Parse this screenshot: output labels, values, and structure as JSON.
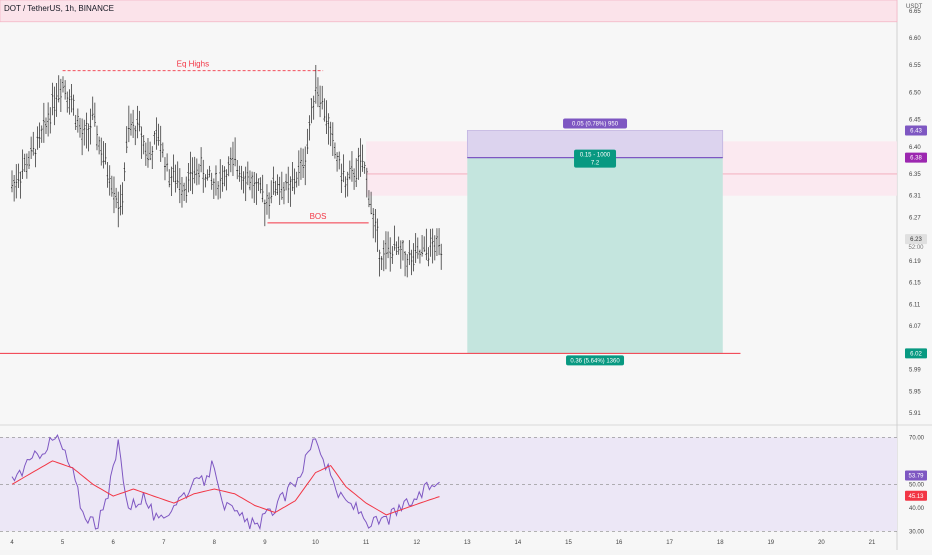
{
  "header": {
    "symbol": "DOT / TetherUS, 1h, BINANCE",
    "currency": "USDT"
  },
  "annotations": {
    "eq_highs": "Eq Highs",
    "bos": "BOS",
    "target_label": "0.05 (0.78%) 950",
    "entry_label_line1": "0.15 - 1000",
    "entry_label_line2": "7.2",
    "stop_label": "0.36 (5.64%) 1360"
  },
  "price_badges": [
    {
      "value": "6.43",
      "color": "#7e57c2"
    },
    {
      "value": "6.38",
      "color": "#9c27b0"
    },
    {
      "value": "6.23",
      "color": "#e0e0e0",
      "text_color": "#333333"
    },
    {
      "value": "6.02",
      "color": "#089981"
    }
  ],
  "rsi_badges": [
    {
      "value": "53.79",
      "color": "#7e57c2"
    },
    {
      "value": "45.13",
      "color": "#f23645"
    }
  ],
  "countdown": "52:00",
  "colors": {
    "price": "#222222",
    "rsi": "#7e57c2",
    "rsi_ma": "#f23645",
    "level": "#f23645"
  },
  "chart_data": {
    "type": "candlestick",
    "x_ticks": [
      "4",
      "5",
      "6",
      "7",
      "8",
      "9",
      "10",
      "11",
      "12",
      "13",
      "14",
      "15",
      "16",
      "17",
      "18",
      "19",
      "20",
      "21"
    ],
    "price_ticks": [
      "6.65",
      "6.60",
      "6.55",
      "6.50",
      "6.45",
      "6.40",
      "6.35",
      "6.31",
      "6.27",
      "6.19",
      "6.15",
      "6.11",
      "6.07",
      "5.99",
      "5.95",
      "5.91"
    ],
    "price_ylim": [
      5.89,
      6.67
    ],
    "rsi_ticks": [
      "70.00",
      "50.00",
      "40.00",
      "30.00"
    ],
    "rsi_ylim": [
      28,
      74
    ],
    "price_path": [
      [
        4.0,
        6.33
      ],
      [
        4.3,
        6.37
      ],
      [
        4.6,
        6.42
      ],
      [
        4.8,
        6.48
      ],
      [
        5.0,
        6.52
      ],
      [
        5.2,
        6.48
      ],
      [
        5.4,
        6.41
      ],
      [
        5.6,
        6.45
      ],
      [
        5.8,
        6.38
      ],
      [
        6.0,
        6.33
      ],
      [
        6.15,
        6.28
      ],
      [
        6.3,
        6.43
      ],
      [
        6.5,
        6.44
      ],
      [
        6.7,
        6.38
      ],
      [
        6.9,
        6.42
      ],
      [
        7.1,
        6.35
      ],
      [
        7.4,
        6.33
      ],
      [
        7.7,
        6.36
      ],
      [
        8.0,
        6.33
      ],
      [
        8.2,
        6.35
      ],
      [
        8.4,
        6.37
      ],
      [
        8.7,
        6.34
      ],
      [
        9.0,
        6.3
      ],
      [
        9.2,
        6.33
      ],
      [
        9.5,
        6.32
      ],
      [
        9.8,
        6.38
      ],
      [
        10.0,
        6.52
      ],
      [
        10.2,
        6.46
      ],
      [
        10.35,
        6.4
      ],
      [
        10.6,
        6.33
      ],
      [
        10.9,
        6.37
      ],
      [
        11.0,
        6.35
      ],
      [
        11.15,
        6.26
      ],
      [
        11.3,
        6.2
      ],
      [
        11.6,
        6.21
      ],
      [
        11.9,
        6.19
      ],
      [
        12.2,
        6.21
      ],
      [
        12.5,
        6.22
      ]
    ],
    "rsi_path": [
      [
        4.0,
        52
      ],
      [
        4.3,
        58
      ],
      [
        4.6,
        65
      ],
      [
        4.9,
        70
      ],
      [
        5.2,
        55
      ],
      [
        5.4,
        38
      ],
      [
        5.7,
        33
      ],
      [
        5.9,
        45
      ],
      [
        6.1,
        68
      ],
      [
        6.3,
        40
      ],
      [
        6.6,
        45
      ],
      [
        6.9,
        33
      ],
      [
        7.2,
        42
      ],
      [
        7.5,
        48
      ],
      [
        7.8,
        52
      ],
      [
        8.0,
        59
      ],
      [
        8.2,
        41
      ],
      [
        8.5,
        36
      ],
      [
        8.8,
        32
      ],
      [
        9.1,
        38
      ],
      [
        9.4,
        45
      ],
      [
        9.7,
        55
      ],
      [
        10.0,
        71
      ],
      [
        10.2,
        58
      ],
      [
        10.5,
        44
      ],
      [
        10.8,
        40
      ],
      [
        11.1,
        33
      ],
      [
        11.4,
        35
      ],
      [
        11.7,
        40
      ],
      [
        12.0,
        44
      ],
      [
        12.3,
        50
      ],
      [
        12.5,
        53.79
      ]
    ],
    "rsi_ma_path": [
      [
        4.0,
        50
      ],
      [
        4.4,
        55
      ],
      [
        4.8,
        60
      ],
      [
        5.2,
        57
      ],
      [
        5.6,
        50
      ],
      [
        6.0,
        45
      ],
      [
        6.4,
        48
      ],
      [
        6.8,
        45
      ],
      [
        7.2,
        42
      ],
      [
        7.6,
        46
      ],
      [
        8.0,
        48
      ],
      [
        8.4,
        46
      ],
      [
        8.8,
        41
      ],
      [
        9.2,
        38
      ],
      [
        9.6,
        43
      ],
      [
        10.0,
        55
      ],
      [
        10.3,
        58
      ],
      [
        10.6,
        49
      ],
      [
        11.0,
        42
      ],
      [
        11.4,
        37
      ],
      [
        11.8,
        40
      ],
      [
        12.2,
        43
      ],
      [
        12.5,
        45.13
      ]
    ],
    "levels": {
      "eq_highs": 6.54,
      "bos": 6.26,
      "stop": 6.02,
      "target": 6.43,
      "entry": 6.38,
      "supply_zone": [
        6.31,
        6.38
      ],
      "top_zone": [
        6.63,
        6.67
      ]
    },
    "position": {
      "x_start": 13.0,
      "x_end": 18.05,
      "target": 6.43,
      "entry": 6.38,
      "stop": 6.02
    }
  }
}
